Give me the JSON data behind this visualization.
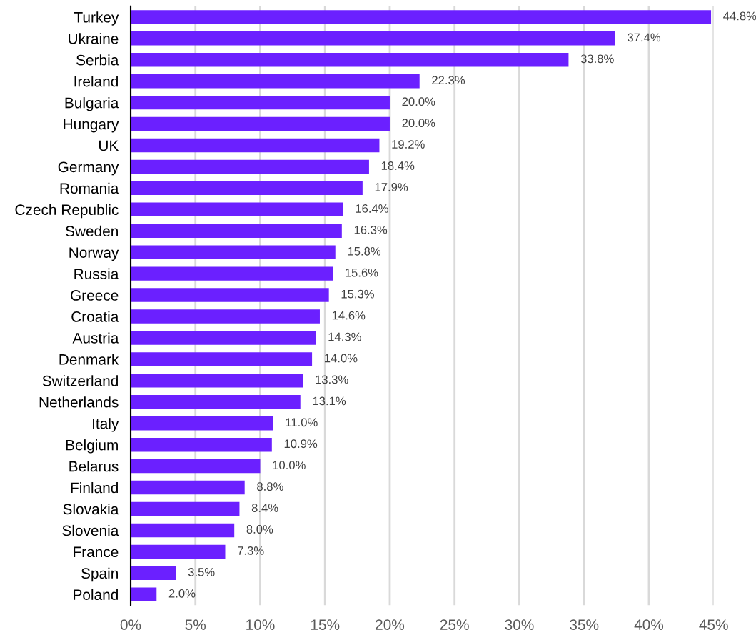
{
  "chart_data": {
    "type": "bar",
    "orientation": "horizontal",
    "categories": [
      "Turkey",
      "Ukraine",
      "Serbia",
      "Ireland",
      "Bulgaria",
      "Hungary",
      "UK",
      "Germany",
      "Romania",
      "Czech Republic",
      "Sweden",
      "Norway",
      "Russia",
      "Greece",
      "Croatia",
      "Austria",
      "Denmark",
      "Switzerland",
      "Netherlands",
      "Italy",
      "Belgium",
      "Belarus",
      "Finland",
      "Slovakia",
      "Slovenia",
      "France",
      "Spain",
      "Poland"
    ],
    "values": [
      44.8,
      37.4,
      33.8,
      22.3,
      20.0,
      20.0,
      19.2,
      18.4,
      17.9,
      16.4,
      16.3,
      15.8,
      15.6,
      15.3,
      14.6,
      14.3,
      14.0,
      13.3,
      13.1,
      11.0,
      10.9,
      10.0,
      8.8,
      8.4,
      8.0,
      7.3,
      3.5,
      2.0
    ],
    "value_labels": [
      "44.8%",
      "37.4%",
      "33.8%",
      "22.3%",
      "20.0%",
      "20.0%",
      "19.2%",
      "18.4%",
      "17.9%",
      "16.4%",
      "16.3%",
      "15.8%",
      "15.6%",
      "15.3%",
      "14.6%",
      "14.3%",
      "14.0%",
      "13.3%",
      "13.1%",
      "11.0%",
      "10.9%",
      "10.0%",
      "8.8%",
      "8.4%",
      "8.0%",
      "7.3%",
      "3.5%",
      "2.0%"
    ],
    "color": "#6b20ff",
    "xlim": [
      0,
      45
    ],
    "xticks": [
      {
        "value": 0,
        "label": "0%"
      },
      {
        "value": 5,
        "label": "5%"
      },
      {
        "value": 10,
        "label": "10%"
      },
      {
        "value": 15,
        "label": "15%"
      },
      {
        "value": 20,
        "label": "20%"
      },
      {
        "value": 25,
        "label": "25%"
      },
      {
        "value": 30,
        "label": "30%"
      },
      {
        "value": 35,
        "label": "35%"
      },
      {
        "value": 40,
        "label": "40%"
      },
      {
        "value": 45,
        "label": "45%"
      }
    ],
    "grid": "x",
    "legend": false
  }
}
